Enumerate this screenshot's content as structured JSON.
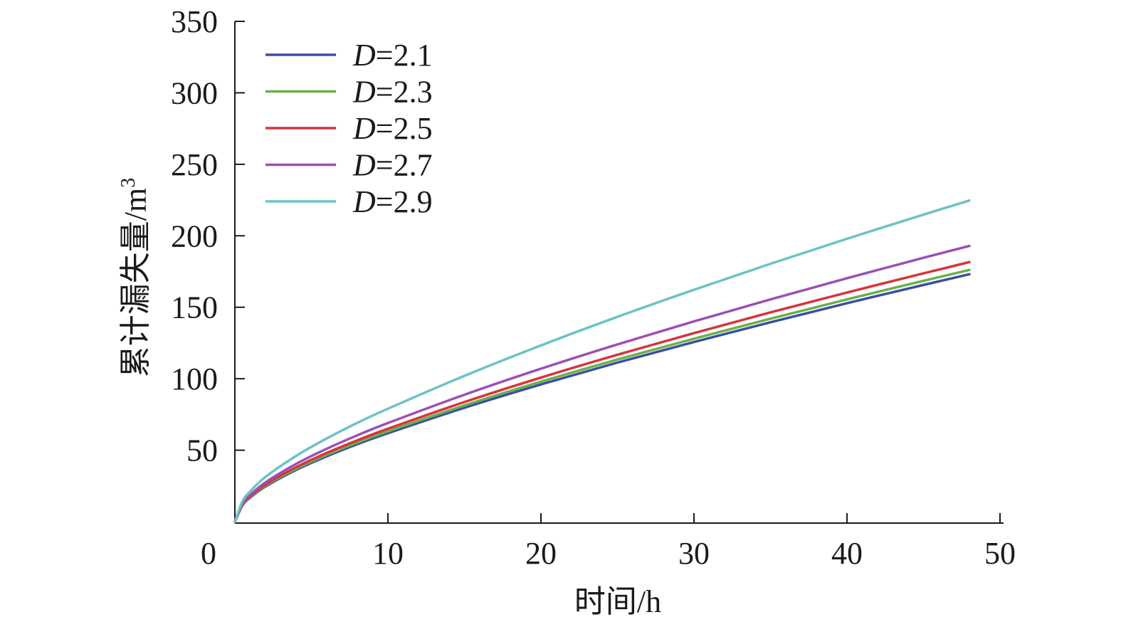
{
  "chart_data": {
    "type": "line",
    "title": "",
    "xlabel": "时间/h",
    "ylabel": "累计漏失量/m",
    "ylabel_superscript": "3",
    "xlim": [
      0,
      50
    ],
    "ylim": [
      0,
      350
    ],
    "xticks": [
      0,
      10,
      20,
      30,
      40,
      50
    ],
    "yticks": [
      50,
      100,
      150,
      200,
      250,
      300,
      350
    ],
    "grid": false,
    "legend_position": "top-left",
    "x": [
      0,
      0.5,
      1,
      2,
      4,
      6,
      8,
      10,
      15,
      20,
      25,
      30,
      35,
      40,
      45,
      48
    ],
    "series": [
      {
        "name": "2.1",
        "name_prefix": "D",
        "name_operator": "=",
        "color": "#3a4fa0",
        "values": [
          0,
          11.4,
          16.8,
          24.6,
          36.2,
          45.7,
          54.2,
          61.9,
          79.7,
          96.0,
          111.3,
          125.7,
          139.5,
          152.8,
          165.6,
          173.1
        ]
      },
      {
        "name": "2.3",
        "name_prefix": "D",
        "name_operator": "=",
        "color": "#6ab04a",
        "values": [
          0,
          11.7,
          17.2,
          25.2,
          37.0,
          46.7,
          55.3,
          63.2,
          81.3,
          97.9,
          113.4,
          128.0,
          142.0,
          155.5,
          168.5,
          176.1
        ]
      },
      {
        "name": "2.5",
        "name_prefix": "D",
        "name_operator": "=",
        "color": "#d8343d",
        "values": [
          0,
          12.0,
          17.7,
          25.9,
          38.1,
          48.1,
          56.9,
          65.0,
          83.7,
          100.8,
          116.8,
          131.9,
          146.4,
          160.3,
          173.7,
          181.6
        ]
      },
      {
        "name": "2.7",
        "name_prefix": "D",
        "name_operator": "=",
        "color": "#9d4fb3",
        "values": [
          0,
          12.7,
          18.7,
          27.5,
          40.4,
          51.0,
          60.4,
          69.0,
          88.8,
          107.0,
          124.0,
          140.1,
          155.5,
          170.3,
          184.6,
          192.9
        ]
      },
      {
        "name": "2.9",
        "name_prefix": "D",
        "name_operator": "=",
        "color": "#6cc3c6",
        "values": [
          0,
          14.3,
          21.2,
          31.3,
          46.0,
          58.2,
          69.1,
          79.0,
          102.0,
          123.3,
          143.3,
          162.2,
          180.4,
          197.9,
          214.8,
          224.7
        ]
      }
    ]
  }
}
